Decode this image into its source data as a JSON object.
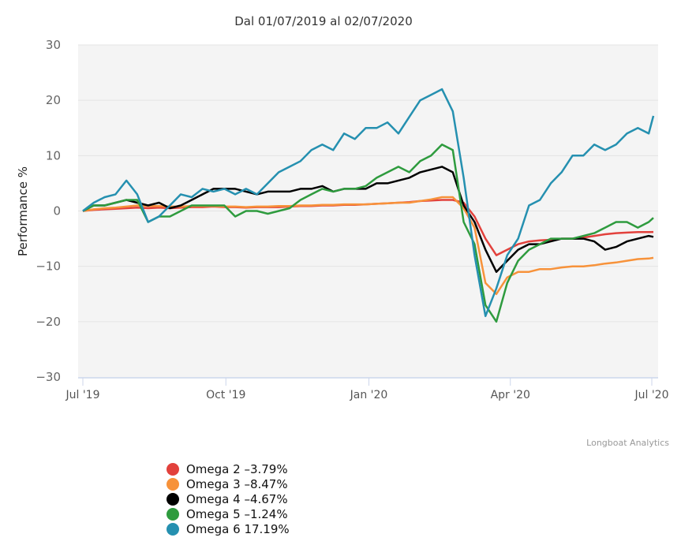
{
  "chart_data": {
    "type": "line",
    "title": "Dal 01/07/2019 al 02/07/2020",
    "xlabel": "",
    "ylabel": "Performance %",
    "ylim": [
      -30,
      30
    ],
    "yticks": [
      30,
      20,
      10,
      0,
      -10,
      -20,
      -30
    ],
    "xticks": [
      {
        "date": "2019-07-01",
        "label": "Jul '19"
      },
      {
        "date": "2019-10-01",
        "label": "Oct '19"
      },
      {
        "date": "2020-01-01",
        "label": "Jan '20"
      },
      {
        "date": "2020-04-01",
        "label": "Apr '20"
      },
      {
        "date": "2020-07-01",
        "label": "Jul '20"
      }
    ],
    "grid": true,
    "legend_placement": "bottom-left",
    "x": [
      "2019-07-01",
      "2019-07-08",
      "2019-07-15",
      "2019-07-22",
      "2019-07-29",
      "2019-08-05",
      "2019-08-12",
      "2019-08-19",
      "2019-08-26",
      "2019-09-02",
      "2019-09-09",
      "2019-09-16",
      "2019-09-23",
      "2019-09-30",
      "2019-10-07",
      "2019-10-14",
      "2019-10-21",
      "2019-10-28",
      "2019-11-04",
      "2019-11-11",
      "2019-11-18",
      "2019-11-25",
      "2019-12-02",
      "2019-12-09",
      "2019-12-16",
      "2019-12-23",
      "2019-12-30",
      "2020-01-06",
      "2020-01-13",
      "2020-01-20",
      "2020-01-27",
      "2020-02-03",
      "2020-02-10",
      "2020-02-17",
      "2020-02-24",
      "2020-03-02",
      "2020-03-09",
      "2020-03-16",
      "2020-03-23",
      "2020-03-30",
      "2020-04-06",
      "2020-04-13",
      "2020-04-20",
      "2020-04-27",
      "2020-05-04",
      "2020-05-11",
      "2020-05-18",
      "2020-05-25",
      "2020-06-01",
      "2020-06-08",
      "2020-06-15",
      "2020-06-22",
      "2020-06-29",
      "2020-07-02"
    ],
    "series": [
      {
        "name": "Omega 2",
        "legend": "Omega 2 -3.79%",
        "color": "#e2413c",
        "values": [
          0,
          0.2,
          0.3,
          0.4,
          0.5,
          0.6,
          0.5,
          0.6,
          0.5,
          0.6,
          0.7,
          0.7,
          0.8,
          0.7,
          0.7,
          0.6,
          0.7,
          0.7,
          0.7,
          0.8,
          0.9,
          0.9,
          1.0,
          1.0,
          1.1,
          1.1,
          1.2,
          1.3,
          1.4,
          1.5,
          1.6,
          1.8,
          1.9,
          2.0,
          2.0,
          1.5,
          -1,
          -5,
          -8,
          -7,
          -6,
          -5.5,
          -5.3,
          -5.2,
          -5,
          -5,
          -4.8,
          -4.5,
          -4.2,
          -4,
          -3.9,
          -3.8,
          -3.8,
          -3.79
        ]
      },
      {
        "name": "Omega 3",
        "legend": "Omega 3 -8.47%",
        "color": "#f7923a",
        "values": [
          0,
          0.3,
          0.5,
          0.6,
          0.8,
          1.0,
          0.9,
          0.9,
          0.8,
          0.8,
          0.9,
          0.9,
          0.9,
          0.8,
          0.8,
          0.7,
          0.8,
          0.8,
          0.9,
          0.9,
          1.0,
          1.0,
          1.1,
          1.1,
          1.2,
          1.2,
          1.2,
          1.3,
          1.4,
          1.5,
          1.5,
          1.8,
          2.1,
          2.5,
          2.5,
          0.5,
          -3,
          -13,
          -15,
          -12,
          -11,
          -11,
          -10.5,
          -10.5,
          -10.2,
          -10,
          -10,
          -9.8,
          -9.5,
          -9.3,
          -9,
          -8.7,
          -8.6,
          -8.47
        ]
      },
      {
        "name": "Omega 4",
        "legend": "Omega 4 -4.67%",
        "color": "#000000",
        "values": [
          0,
          1,
          1,
          1.5,
          2,
          1.5,
          1,
          1.5,
          0.5,
          1,
          2,
          3,
          4,
          4,
          4,
          3.5,
          3,
          3.5,
          3.5,
          3.5,
          4,
          4,
          4.5,
          3.5,
          4,
          4,
          4,
          5,
          5,
          5.5,
          6,
          7,
          7.5,
          8,
          7,
          1,
          -2,
          -7,
          -11,
          -9,
          -7,
          -6,
          -6,
          -5.5,
          -5,
          -5,
          -5,
          -5.5,
          -7,
          -6.5,
          -5.5,
          -5,
          -4.5,
          -4.67
        ]
      },
      {
        "name": "Omega 5",
        "legend": "Omega 5 -1.24%",
        "color": "#2e9b3e",
        "values": [
          0,
          1,
          1,
          1.5,
          2,
          2,
          -2,
          -1,
          -1,
          0,
          1,
          1,
          1,
          1,
          -1,
          0,
          0,
          -0.5,
          0,
          0.5,
          2,
          3,
          4,
          3.5,
          4,
          4,
          4.5,
          6,
          7,
          8,
          7,
          9,
          10,
          12,
          11,
          -2,
          -6,
          -17,
          -20,
          -13,
          -9,
          -7,
          -6,
          -5,
          -5,
          -5,
          -4.5,
          -4,
          -3,
          -2,
          -2,
          -3,
          -2,
          -1.24
        ]
      },
      {
        "name": "Omega 6",
        "legend": "Omega 6 17.19%",
        "color": "#2590b0",
        "values": [
          0,
          1.5,
          2.5,
          3,
          5.5,
          3,
          -2,
          -1,
          1,
          3,
          2.5,
          4,
          3.5,
          4,
          3,
          4,
          3,
          5,
          7,
          8,
          9,
          11,
          12,
          11,
          14,
          13,
          15,
          15,
          16,
          14,
          17,
          20,
          21,
          22,
          18,
          6,
          -8,
          -19,
          -14,
          -8,
          -5,
          1,
          2,
          5,
          7,
          10,
          10,
          12,
          11,
          12,
          14,
          15,
          14,
          17.19
        ]
      }
    ]
  },
  "credits": "Longboat Analytics"
}
